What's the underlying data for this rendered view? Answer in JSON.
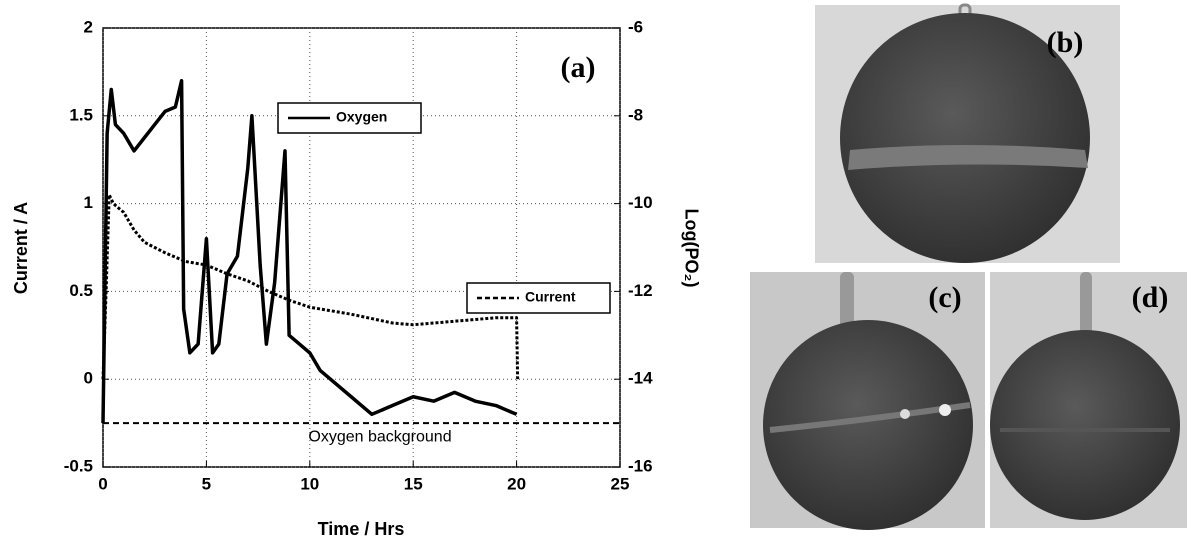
{
  "chart_data": {
    "type": "line",
    "xlabel": "Time / Hrs",
    "ylabel": "Current / A",
    "y2label": "Log(PO₂)",
    "panel_label": "(a)",
    "xlim": [
      0,
      25
    ],
    "xticks": [
      0,
      5,
      10,
      15,
      20,
      25
    ],
    "ylim": [
      -0.5,
      2
    ],
    "yticks": [
      -0.5,
      0,
      0.5,
      1,
      1.5,
      2
    ],
    "y2lim": [
      -16,
      -6
    ],
    "y2ticks": [
      -16,
      -14,
      -12,
      -10,
      -8,
      -6
    ],
    "grid": true,
    "series": [
      {
        "name": "Oxygen",
        "color": "#000000",
        "style": "solid",
        "axis": "y2",
        "x": [
          0,
          0.2,
          0.4,
          0.6,
          1,
          1.5,
          2,
          2.5,
          3,
          3.5,
          3.8,
          3.9,
          4.2,
          4.6,
          5,
          5.3,
          5.6,
          6,
          6.5,
          7,
          7.2,
          7.6,
          7.9,
          8.3,
          8.8,
          9,
          9.5,
          10,
          10.5,
          11,
          12,
          13,
          14,
          15,
          16,
          17,
          18,
          19,
          20
        ],
        "values": [
          -15,
          -8.4,
          -7.4,
          -8.2,
          -8.4,
          -8.8,
          -8.5,
          -8.2,
          -7.9,
          -7.8,
          -7.2,
          -12.4,
          -13.4,
          -13.2,
          -10.8,
          -13.4,
          -13.2,
          -11.6,
          -11.2,
          -9.2,
          -8,
          -11.4,
          -13.2,
          -11.8,
          -8.8,
          -13,
          -13.2,
          -13.4,
          -13.8,
          -14,
          -14.4,
          -14.8,
          -14.6,
          -14.4,
          -14.5,
          -14.3,
          -14.5,
          -14.6,
          -14.8
        ]
      },
      {
        "name": "Current",
        "color": "#000000",
        "style": "dash",
        "axis": "y",
        "x": [
          0,
          0.15,
          0.3,
          0.5,
          1,
          1.5,
          2,
          3,
          4,
          5,
          6,
          7,
          8,
          9,
          10,
          12,
          14,
          15,
          17,
          19,
          20,
          20.05
        ],
        "values": [
          0,
          0.5,
          1.05,
          1,
          0.95,
          0.85,
          0.78,
          0.72,
          0.67,
          0.65,
          0.6,
          0.56,
          0.5,
          0.45,
          0.41,
          0.37,
          0.32,
          0.31,
          0.33,
          0.35,
          0.35,
          0
        ]
      }
    ],
    "reference_line": {
      "label": "Oxygen background",
      "value": -15,
      "axis": "y2"
    }
  },
  "photos": [
    {
      "label": "(b)"
    },
    {
      "label": "(c)"
    },
    {
      "label": "(d)"
    }
  ]
}
